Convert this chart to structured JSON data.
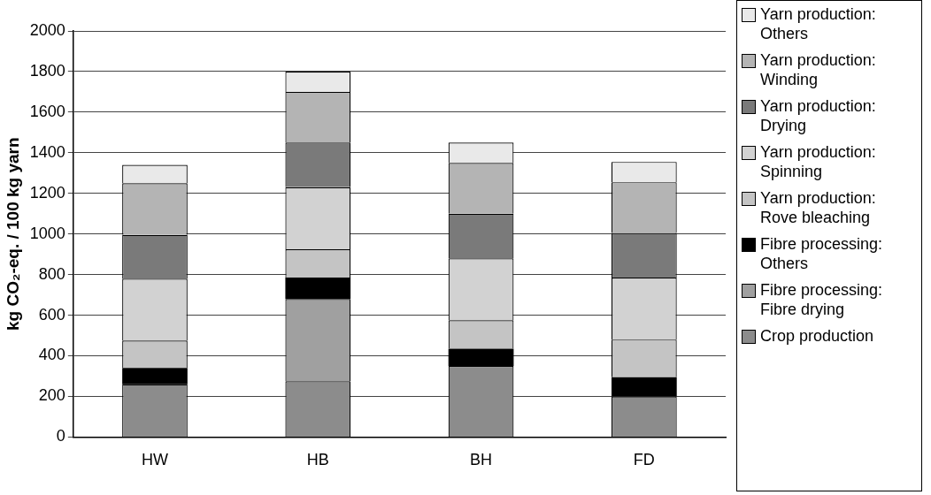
{
  "chart_data": {
    "type": "bar",
    "stacked": true,
    "ylabel": "kg CO₂-eq. / 100 kg yarn",
    "categories": [
      "HW",
      "HB",
      "BH",
      "FD"
    ],
    "ylim": [
      0,
      2000
    ],
    "yticks": [
      0,
      200,
      400,
      600,
      800,
      1000,
      1200,
      1400,
      1600,
      1800,
      2000
    ],
    "grid": "y",
    "legend": "right",
    "series": [
      {
        "name": "Crop production",
        "color": "#8c8c8c",
        "values": [
          260,
          275,
          350,
          200
        ]
      },
      {
        "name": "Fibre processing: Fibre drying",
        "color": "#a0a0a0",
        "values": [
          0,
          405,
          0,
          0
        ]
      },
      {
        "name": "Fibre processing: Others",
        "color": "#000000",
        "values": [
          80,
          105,
          85,
          95
        ]
      },
      {
        "name": "Yarn production: Rove bleaching",
        "color": "#c4c4c4",
        "values": [
          135,
          140,
          140,
          185
        ]
      },
      {
        "name": "Yarn production: Spinning",
        "color": "#d2d2d2",
        "values": [
          305,
          305,
          305,
          305
        ]
      },
      {
        "name": "Yarn production: Drying",
        "color": "#7a7a7a",
        "values": [
          215,
          220,
          220,
          220
        ]
      },
      {
        "name": "Yarn production: Winding",
        "color": "#b4b4b4",
        "values": [
          255,
          250,
          250,
          250
        ]
      },
      {
        "name": "Yarn production: Others",
        "color": "#e9e9e9",
        "values": [
          90,
          100,
          100,
          100
        ]
      }
    ]
  }
}
